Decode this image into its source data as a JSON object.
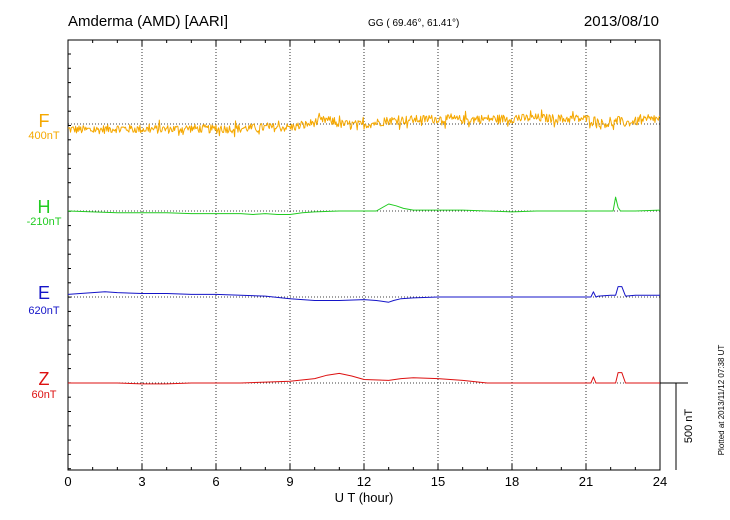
{
  "header": {
    "station": "Amderma (AMD)  [AARI]",
    "coordinates": "GG ( 69.46°,  61.41°)",
    "date": "2013/08/10"
  },
  "plotted_note": "Plotted at 2013/11/12 07:38 UT",
  "scale_bar": {
    "label": "500 nT",
    "value_nT": 500
  },
  "chart_data": {
    "type": "line",
    "xlabel": "U T (hour)",
    "xlim": [
      0,
      24
    ],
    "xticks": [
      0,
      3,
      6,
      9,
      12,
      15,
      18,
      21,
      24
    ],
    "xtick_labels": [
      "0",
      "3",
      "6",
      "9",
      "12",
      "15",
      "18",
      "21",
      "24"
    ],
    "grid": "dotted vertical every 3 hours; dotted baseline per component",
    "units_per_panel_nT": 500,
    "series": [
      {
        "name": "F",
        "baseline_label": "400nT",
        "color": "#f5a800",
        "style": "noisy",
        "x": [
          0,
          1,
          2,
          3,
          4,
          5,
          6,
          7,
          8,
          9,
          9.5,
          10,
          10.5,
          11,
          12,
          13,
          14,
          15,
          16,
          17,
          18,
          19,
          20,
          21,
          21.3,
          21.6,
          22,
          22.3,
          22.6,
          23,
          24
        ],
        "y": [
          -30,
          -35,
          -25,
          -30,
          -30,
          -25,
          -30,
          -25,
          -20,
          -20,
          -10,
          10,
          25,
          0,
          -5,
          20,
          25,
          30,
          25,
          30,
          30,
          35,
          30,
          30,
          25,
          5,
          0,
          20,
          5,
          15,
          30
        ],
        "noise_amp_nT": 25
      },
      {
        "name": "H",
        "baseline_label": "-210nT",
        "color": "#22cc22",
        "style": "smooth",
        "x": [
          0,
          1,
          2,
          3,
          4,
          5,
          6,
          7,
          7.5,
          8,
          8.5,
          9,
          9.5,
          10,
          11,
          12,
          12.5,
          13,
          13.3,
          13.6,
          14,
          15,
          16,
          17,
          18,
          19,
          20,
          21,
          21.2,
          21.4,
          21.6,
          22,
          22.1,
          22.2,
          22.3,
          22.4,
          22.5,
          23,
          24
        ],
        "y": [
          0,
          -5,
          -10,
          -10,
          -10,
          -15,
          -15,
          -15,
          -20,
          -15,
          -20,
          -20,
          -10,
          -5,
          0,
          0,
          0,
          40,
          30,
          15,
          5,
          5,
          5,
          0,
          -5,
          0,
          0,
          0,
          0,
          0,
          0,
          0,
          0,
          80,
          20,
          0,
          0,
          0,
          5
        ]
      },
      {
        "name": "E",
        "baseline_label": "620nT",
        "color": "#1414c8",
        "style": "smooth",
        "x": [
          0,
          1,
          1.5,
          2,
          3,
          4,
          5,
          6,
          7,
          8,
          9,
          10,
          11,
          12,
          12.5,
          13,
          13.2,
          13.5,
          14,
          15,
          16,
          17,
          18,
          19,
          20,
          21,
          21.2,
          21.3,
          21.4,
          21.5,
          22,
          22.2,
          22.3,
          22.45,
          22.6,
          23,
          24
        ],
        "y": [
          15,
          25,
          30,
          25,
          20,
          20,
          15,
          15,
          10,
          5,
          -10,
          -20,
          -20,
          -15,
          -20,
          -30,
          -20,
          -10,
          -5,
          0,
          0,
          0,
          0,
          0,
          0,
          0,
          0,
          30,
          0,
          5,
          10,
          10,
          60,
          60,
          5,
          10,
          10
        ]
      },
      {
        "name": "Z",
        "baseline_label": "60nT",
        "color": "#dd1111",
        "style": "smooth",
        "x": [
          0,
          1,
          2,
          3,
          4,
          5,
          6,
          7,
          8,
          9,
          10,
          10.5,
          11,
          11.5,
          12,
          13,
          13.5,
          14,
          15,
          16,
          17,
          18,
          19,
          20,
          21,
          21.2,
          21.3,
          21.4,
          22,
          22.2,
          22.3,
          22.45,
          22.6,
          23,
          24
        ],
        "y": [
          0,
          0,
          0,
          -5,
          -5,
          0,
          0,
          0,
          5,
          10,
          25,
          45,
          55,
          40,
          20,
          15,
          25,
          30,
          25,
          15,
          0,
          0,
          0,
          0,
          0,
          0,
          35,
          0,
          0,
          0,
          60,
          60,
          0,
          0,
          0
        ]
      }
    ]
  }
}
